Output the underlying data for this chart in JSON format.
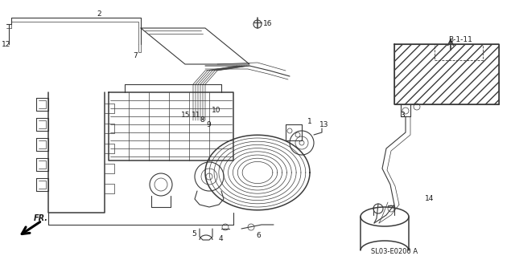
{
  "bg_color": "#ffffff",
  "line_color": "#3a3a3a",
  "label_color": "#1a1a1a",
  "fig_width": 6.4,
  "fig_height": 3.19,
  "dpi": 100,
  "part_code": "SL03-E0200 A",
  "ref_label": "B-1-11"
}
